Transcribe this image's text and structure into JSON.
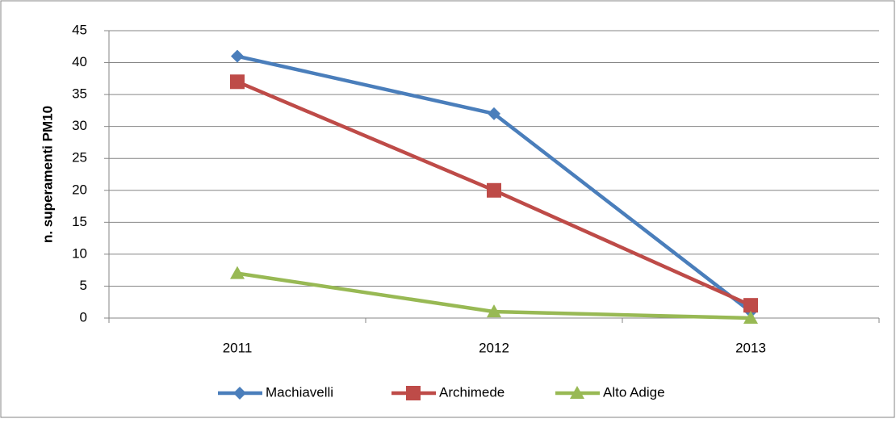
{
  "chart_data": {
    "type": "line",
    "y_label": "n. superamenti PM10",
    "categories": [
      "2011",
      "2012",
      "2013"
    ],
    "series": [
      {
        "name": "Machiavelli",
        "color": "#4a7ebb",
        "marker": "diamond",
        "values": [
          41,
          32,
          1
        ]
      },
      {
        "name": "Archimede",
        "color": "#be4b48",
        "marker": "square",
        "values": [
          37,
          20,
          2
        ]
      },
      {
        "name": "Alto Adige",
        "color": "#98b954",
        "marker": "triangle",
        "values": [
          7,
          1,
          0
        ]
      }
    ],
    "ylim": [
      0,
      45
    ],
    "yticks": [
      0,
      5,
      10,
      15,
      20,
      25,
      30,
      35,
      40,
      45
    ],
    "grid": true,
    "legend": "bottom"
  }
}
